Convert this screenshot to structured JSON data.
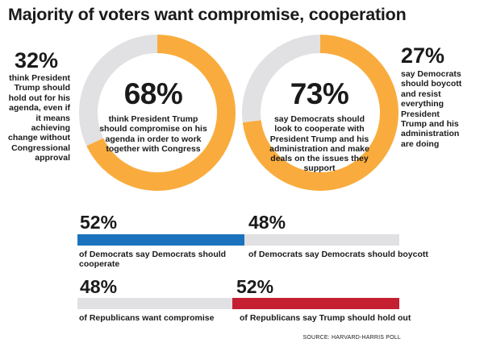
{
  "title": "Majority of voters want compromise, cooperation",
  "source": "SOURCE: HARVARD-HARRIS POLL",
  "colors": {
    "orange": "#f9ac3d",
    "gray": "#e1e1e3",
    "blue": "#1b73be",
    "red": "#c42032"
  },
  "chart_data": [
    {
      "type": "pie",
      "donut": true,
      "slices": [
        {
          "value": 68,
          "pct": "68%",
          "label": "think President Trump should compromise on his agenda in order to work together with Congress",
          "color": "orange"
        },
        {
          "value": 32,
          "pct": "32%",
          "label": "think President Trump should hold out for his agenda, even if it means achieving change without Congressional approval",
          "color": "gray"
        }
      ]
    },
    {
      "type": "pie",
      "donut": true,
      "slices": [
        {
          "value": 73,
          "pct": "73%",
          "label": "say Democrats should look to cooperate with President Trump and his administration and make deals on the issues they support",
          "color": "orange"
        },
        {
          "value": 27,
          "pct": "27%",
          "label": "say Democrats should boycott and resist everything President Trump and his administration are doing",
          "color": "gray"
        }
      ]
    },
    {
      "type": "bar",
      "orientation": "horizontal",
      "bars": [
        {
          "value": 52,
          "pct": "52%",
          "label": "of Democrats say Democrats should cooperate",
          "color": "blue"
        },
        {
          "value": 48,
          "pct": "48%",
          "label": "of Democrats say Democrats should boycott",
          "color": "gray"
        }
      ]
    },
    {
      "type": "bar",
      "orientation": "horizontal",
      "bars": [
        {
          "value": 48,
          "pct": "48%",
          "label": "of Republicans want compromise",
          "color": "gray"
        },
        {
          "value": 52,
          "pct": "52%",
          "label": "of Republicans say Trump should hold out",
          "color": "red"
        }
      ]
    }
  ]
}
